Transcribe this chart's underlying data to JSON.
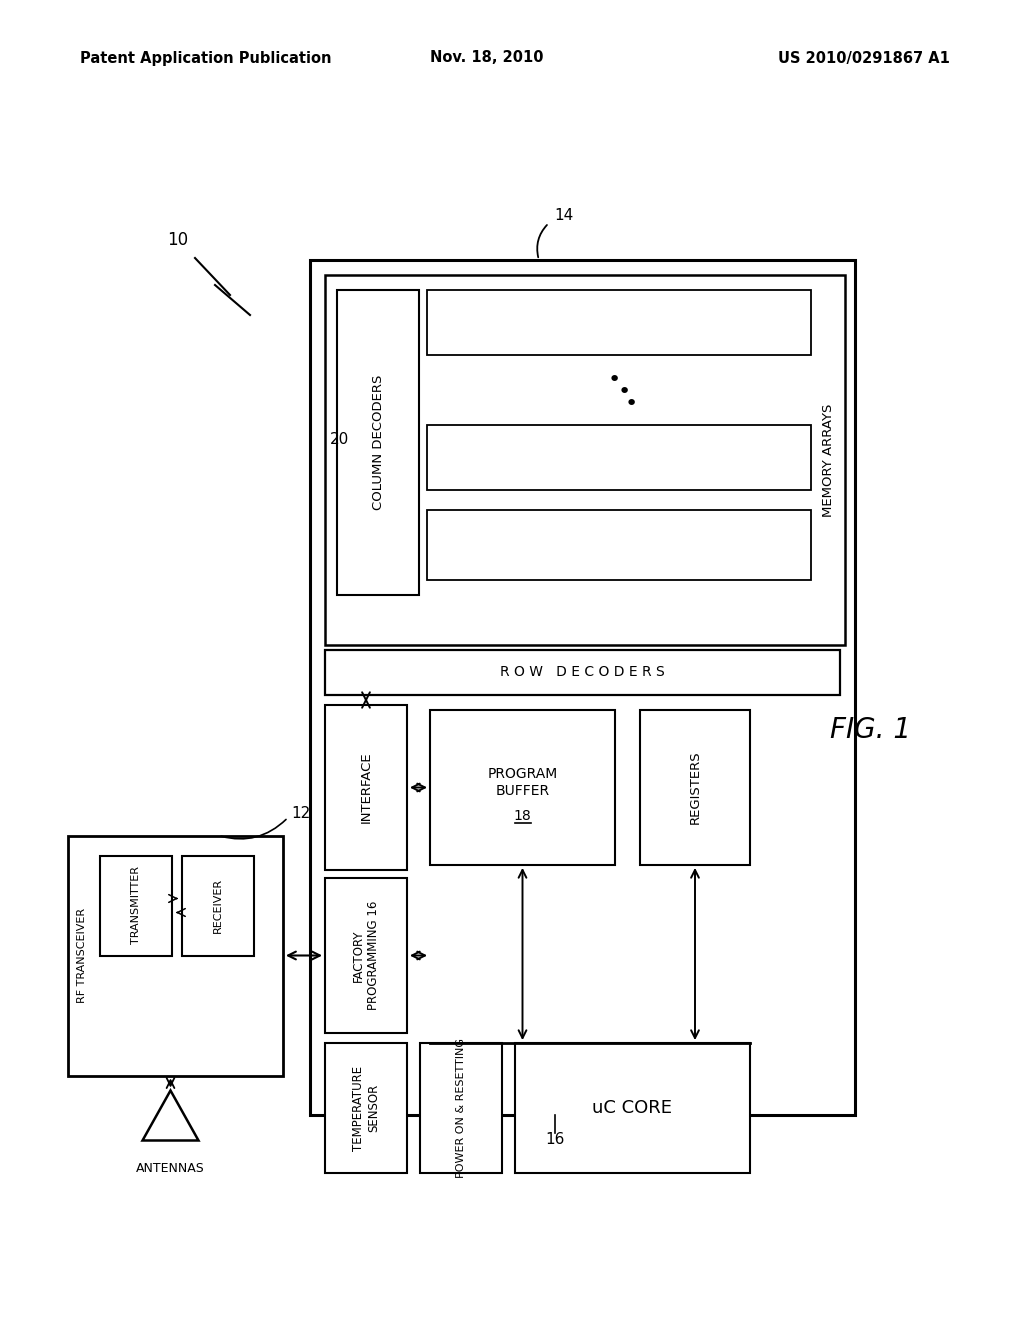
{
  "bg_color": "#ffffff",
  "header_left": "Patent Application Publication",
  "header_center": "Nov. 18, 2010",
  "header_right": "US 2010/0291867 A1",
  "fig_label": "FIG. 1",
  "label_10": "10",
  "label_12": "12",
  "label_14": "14",
  "label_16": "16",
  "label_18": "18",
  "label_20": "20",
  "antenna_label": "ANTENNAS",
  "rf_label": "RF TRANSCEIVER",
  "transmitter_label": "TRANSMITTER",
  "receiver_label": "RECEIVER",
  "temp_sensor_label": "TEMPERATURE\nSENSOR",
  "power_on_label": "POWER ON & RESETTING",
  "factory_label": "FACTORY\nPROGRAMMING 16",
  "interface_label": "INTERFACE",
  "program_buffer_label": "PROGRAM\nBUFFER\n18",
  "registers_label": "REGISTERS",
  "uc_core_label": "uC CORE",
  "row_decoders_label": "R O W   D E C O D E R S",
  "col_decoders_label": "COLUMN DECODERS",
  "memory_arrays_label": "MEMORY ARRAYS"
}
